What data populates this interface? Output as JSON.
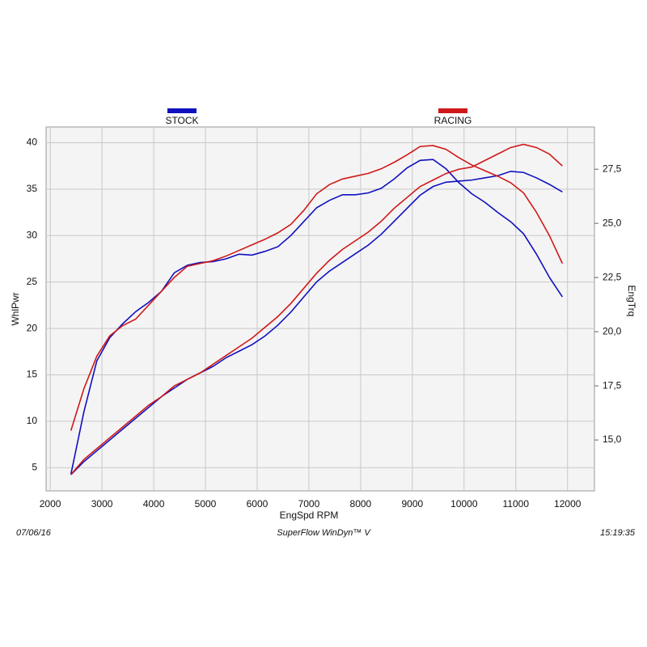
{
  "chart_data": {
    "type": "line",
    "xlabel": "EngSpd  RPM",
    "ylabel": "WhlPwr",
    "y2label": "EngTrq",
    "footer_left": "07/06/16",
    "footer_center": "SuperFlow WinDyn™ V",
    "footer_right": "15:19:35",
    "x": [
      2400,
      2650,
      2900,
      3150,
      3400,
      3650,
      3900,
      4150,
      4400,
      4650,
      4900,
      5150,
      5400,
      5650,
      5900,
      6150,
      6400,
      6650,
      6900,
      7150,
      7400,
      7650,
      7900,
      8150,
      8400,
      8650,
      8900,
      9150,
      9400,
      9650,
      9900,
      10150,
      10400,
      10650,
      10900,
      11150,
      11400,
      11650,
      11900
    ],
    "series": [
      {
        "name": "STOCK",
        "color": "#1010c0",
        "values": [
          4.3,
          11,
          16.5,
          19,
          20.5,
          21.8,
          22.8,
          24,
          26,
          26.8,
          27.1,
          27.2,
          27.5,
          28,
          27.9,
          28.3,
          28.8,
          30,
          31.5,
          33,
          33.8,
          34.4,
          34.4,
          34.6,
          35.1,
          36.1,
          37.3,
          38.1,
          38.2,
          37.2,
          35.7,
          34.5,
          33.6,
          32.5,
          31.5,
          30.2,
          28,
          25.5,
          23.4
        ],
        "y2_values": [
          13.4,
          14.0,
          14.5,
          15.0,
          15.5,
          16.0,
          16.5,
          17.0,
          17.4,
          17.8,
          18.1,
          18.4,
          18.8,
          19.1,
          19.4,
          19.8,
          20.3,
          20.9,
          21.6,
          22.3,
          22.8,
          23.2,
          23.6,
          24.0,
          24.5,
          25.1,
          25.7,
          26.3,
          26.7,
          26.9,
          26.95,
          27.0,
          27.1,
          27.2,
          27.4,
          27.35,
          27.1,
          26.8,
          26.45
        ]
      },
      {
        "name": "RACING",
        "color": "#d01818",
        "values": [
          9,
          13.5,
          17,
          19.2,
          20.3,
          21,
          22.5,
          24,
          25.5,
          26.7,
          27,
          27.3,
          27.8,
          28.4,
          29,
          29.6,
          30.3,
          31.2,
          32.7,
          34.5,
          35.5,
          36.1,
          36.4,
          36.7,
          37.2,
          37.9,
          38.7,
          39.6,
          39.7,
          39.3,
          38.4,
          37.6,
          37,
          36.4,
          35.7,
          34.6,
          32.5,
          30,
          27
        ],
        "y2_values": [
          13.4,
          14.1,
          14.6,
          15.1,
          15.6,
          16.1,
          16.6,
          17.0,
          17.5,
          17.8,
          18.1,
          18.5,
          18.9,
          19.3,
          19.7,
          20.2,
          20.7,
          21.3,
          22.0,
          22.7,
          23.3,
          23.8,
          24.2,
          24.6,
          25.1,
          25.7,
          26.2,
          26.7,
          27.0,
          27.3,
          27.5,
          27.6,
          27.9,
          28.2,
          28.5,
          28.65,
          28.5,
          28.2,
          27.65
        ]
      }
    ],
    "xlim": [
      1920,
      12520
    ],
    "xticks": [
      2000,
      3000,
      4000,
      5000,
      6000,
      7000,
      8000,
      9000,
      10000,
      11000,
      12000
    ],
    "ylim": [
      2.5,
      41.7
    ],
    "yticks": [
      5,
      10,
      15,
      20,
      25,
      30,
      35,
      40
    ],
    "y2lim": [
      12.65,
      29.45
    ],
    "y2ticks": [
      {
        "value": 15,
        "label": "15,0"
      },
      {
        "value": 17.5,
        "label": "17,5"
      },
      {
        "value": 20,
        "label": "20,0"
      },
      {
        "value": 22.5,
        "label": "22,5"
      },
      {
        "value": 25,
        "label": "25,0"
      },
      {
        "value": 27.5,
        "label": "27,5"
      }
    ],
    "grid": true
  }
}
